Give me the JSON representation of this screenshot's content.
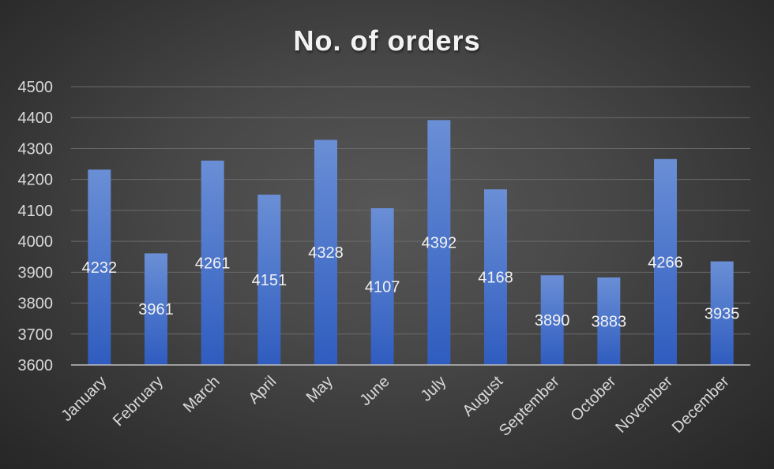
{
  "chart_data": {
    "type": "bar",
    "title": "No. of orders",
    "xlabel": "",
    "ylabel": "",
    "categories": [
      "January",
      "February",
      "March",
      "April",
      "May",
      "June",
      "July",
      "August",
      "September",
      "October",
      "November",
      "December"
    ],
    "values": [
      4232,
      3961,
      4261,
      4151,
      4328,
      4107,
      4392,
      4168,
      3890,
      3883,
      4266,
      3935
    ],
    "ylim": [
      3600,
      4500
    ],
    "yticks": [
      3600,
      3700,
      3800,
      3900,
      4000,
      4100,
      4200,
      4300,
      4400,
      4500
    ],
    "grid": true,
    "legend": "none",
    "data_labels": true,
    "colors": {
      "bar_top": "#6a8fd6",
      "bar_bottom": "#2f5cbf",
      "background": "#3a3a3a"
    }
  }
}
